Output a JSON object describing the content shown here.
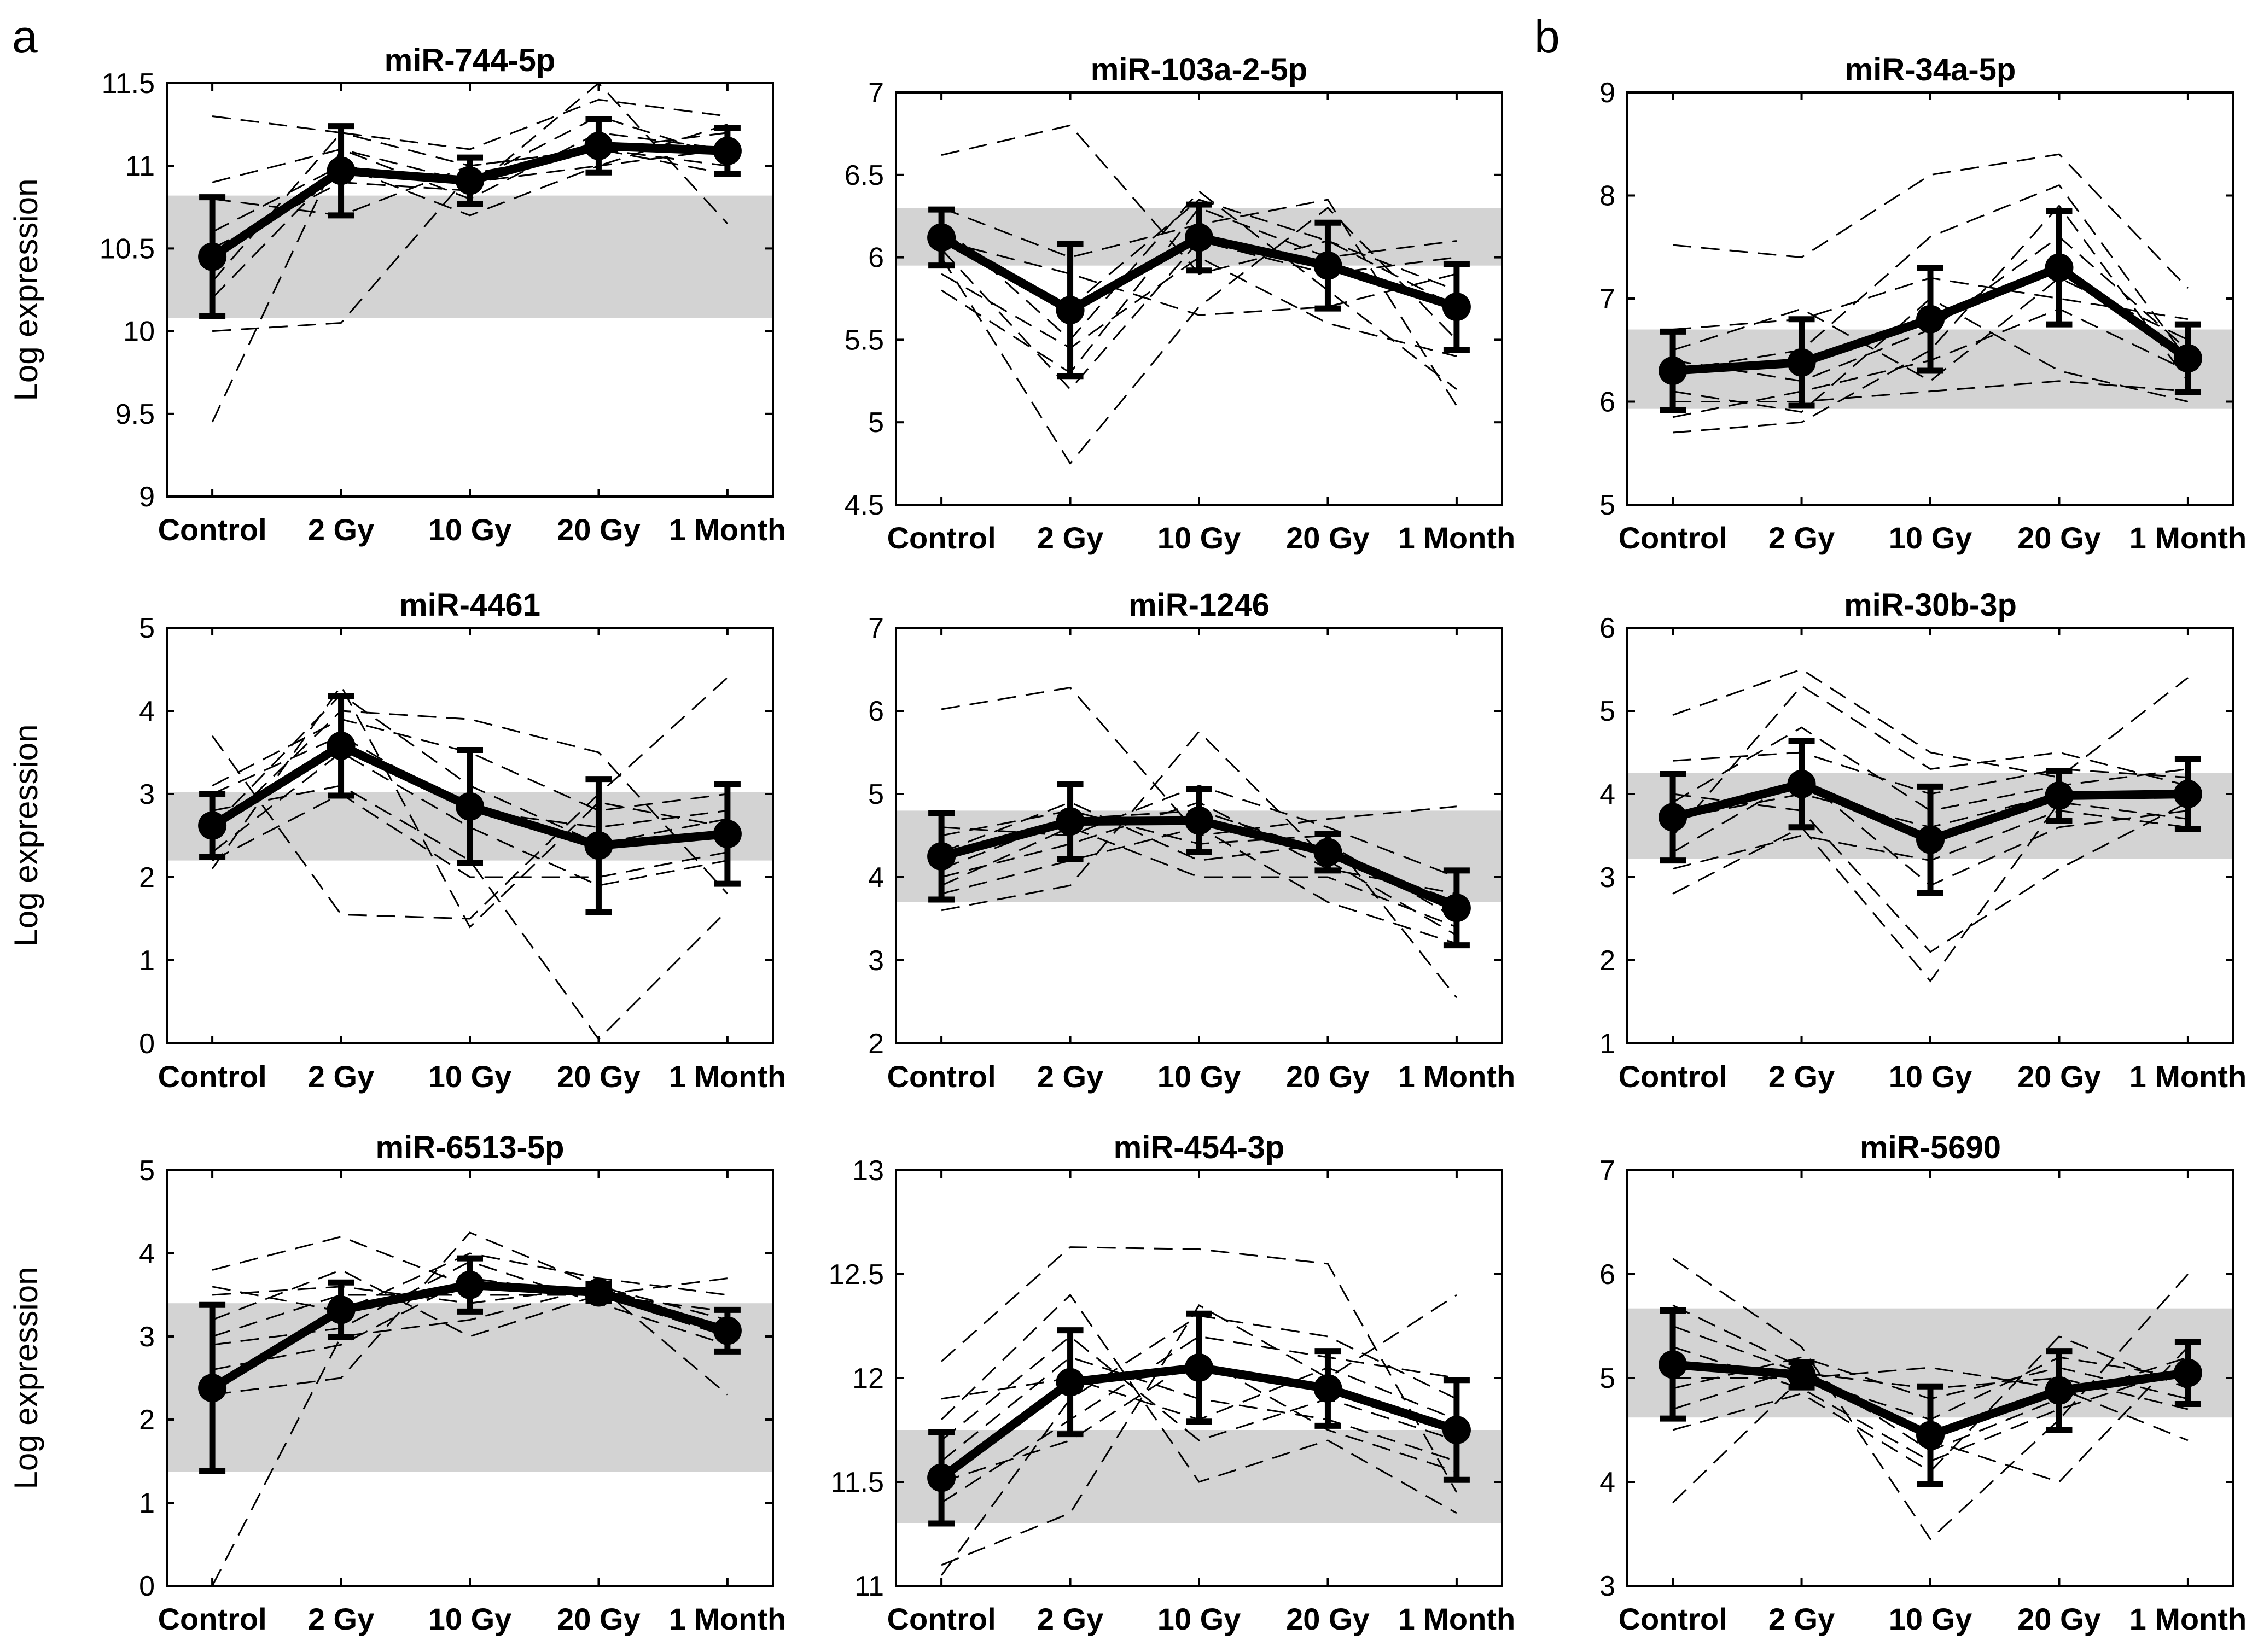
{
  "panel_letters": [
    "a",
    "b"
  ],
  "chart_data": [
    {
      "type": "line",
      "title": "miR-744-5p",
      "ylabel": "Log expression",
      "xlabel": "",
      "categories": [
        "Control",
        "2 Gy",
        "10 Gy",
        "20 Gy",
        "1 Month"
      ],
      "ylim": [
        9,
        11.5
      ],
      "yticks": [
        9,
        9.5,
        10,
        10.5,
        11,
        11.5
      ],
      "control_band": [
        10.08,
        10.82
      ],
      "mean": {
        "values": [
          10.45,
          10.97,
          10.91,
          11.12,
          11.09
        ],
        "err": [
          0.36,
          0.27,
          0.14,
          0.16,
          0.14
        ]
      },
      "series": [
        [
          11.3,
          11.2,
          11.0,
          11.1,
          10.95
        ],
        [
          10.9,
          11.1,
          10.8,
          11.2,
          11.1
        ],
        [
          10.6,
          11.0,
          10.9,
          11.3,
          11.05
        ],
        [
          9.45,
          11.1,
          10.9,
          11.0,
          11.25
        ],
        [
          10.2,
          11.0,
          10.7,
          11.0,
          11.1
        ],
        [
          10.0,
          10.05,
          10.95,
          11.1,
          11.2
        ],
        [
          10.5,
          10.9,
          10.85,
          11.5,
          10.65
        ],
        [
          10.8,
          10.7,
          11.0,
          11.1,
          11.0
        ],
        [
          10.3,
          11.2,
          11.1,
          11.4,
          11.3
        ]
      ]
    },
    {
      "type": "line",
      "title": "miR-103a-2-5p",
      "ylabel": "",
      "xlabel": "",
      "categories": [
        "Control",
        "2 Gy",
        "10 Gy",
        "20 Gy",
        "1 Month"
      ],
      "ylim": [
        4.5,
        7
      ],
      "yticks": [
        4.5,
        5,
        5.5,
        6,
        6.5,
        7
      ],
      "control_band": [
        5.95,
        6.3
      ],
      "mean": {
        "values": [
          6.12,
          5.68,
          6.12,
          5.95,
          5.7
        ],
        "err": [
          0.17,
          0.4,
          0.2,
          0.26,
          0.26
        ]
      },
      "series": [
        [
          6.62,
          6.8,
          5.9,
          6.1,
          5.8
        ],
        [
          6.0,
          4.75,
          5.7,
          6.3,
          5.5
        ],
        [
          6.2,
          5.5,
          6.4,
          5.8,
          5.2
        ],
        [
          5.8,
          5.3,
          6.3,
          6.0,
          6.1
        ],
        [
          6.1,
          5.9,
          5.65,
          5.7,
          5.9
        ],
        [
          6.3,
          6.0,
          6.2,
          6.35,
          5.1
        ],
        [
          5.9,
          5.45,
          6.0,
          5.6,
          5.4
        ],
        [
          6.15,
          5.7,
          6.35,
          6.1,
          5.7
        ],
        [
          6.05,
          5.2,
          6.1,
          5.9,
          6.0
        ]
      ]
    },
    {
      "type": "line",
      "title": "miR-34a-5p",
      "ylabel": "",
      "xlabel": "",
      "categories": [
        "Control",
        "2 Gy",
        "10 Gy",
        "20 Gy",
        "1 Month"
      ],
      "ylim": [
        5,
        9
      ],
      "yticks": [
        5,
        6,
        7,
        8,
        9
      ],
      "control_band": [
        5.93,
        6.7
      ],
      "mean": {
        "values": [
          6.3,
          6.38,
          6.8,
          7.3,
          6.42
        ],
        "err": [
          0.38,
          0.42,
          0.5,
          0.55,
          0.33
        ]
      },
      "series": [
        [
          7.52,
          7.4,
          8.2,
          8.4,
          7.1
        ],
        [
          6.3,
          6.5,
          7.6,
          8.1,
          6.4
        ],
        [
          5.7,
          5.8,
          6.5,
          7.9,
          6.2
        ],
        [
          6.0,
          6.0,
          6.1,
          6.2,
          6.1
        ],
        [
          6.5,
          6.9,
          6.2,
          7.2,
          6.6
        ],
        [
          6.1,
          5.9,
          7.0,
          6.3,
          6.0
        ],
        [
          6.4,
          6.2,
          6.7,
          7.6,
          6.5
        ],
        [
          5.85,
          6.1,
          6.4,
          6.9,
          6.3
        ],
        [
          6.7,
          6.8,
          7.2,
          7.0,
          6.8
        ]
      ]
    },
    {
      "type": "line",
      "title": "miR-4461",
      "ylabel": "Log expression",
      "xlabel": "",
      "categories": [
        "Control",
        "2 Gy",
        "10 Gy",
        "20 Gy",
        "1 Month"
      ],
      "ylim": [
        0,
        5
      ],
      "yticks": [
        0,
        1,
        2,
        3,
        4,
        5
      ],
      "control_band": [
        2.2,
        3.02
      ],
      "mean": {
        "values": [
          2.62,
          3.58,
          2.85,
          2.38,
          2.52
        ],
        "err": [
          0.38,
          0.6,
          0.68,
          0.8,
          0.6
        ]
      },
      "series": [
        [
          3.7,
          1.55,
          1.5,
          3.0,
          4.4
        ],
        [
          2.1,
          4.3,
          1.4,
          2.9,
          2.6
        ],
        [
          2.5,
          4.0,
          3.9,
          3.5,
          1.8
        ],
        [
          2.8,
          3.1,
          2.2,
          0.05,
          1.6
        ],
        [
          3.1,
          3.9,
          3.5,
          2.8,
          3.0
        ],
        [
          2.3,
          3.5,
          2.6,
          1.9,
          2.2
        ],
        [
          2.6,
          4.2,
          3.1,
          2.4,
          2.7
        ],
        [
          2.2,
          3.0,
          2.0,
          2.0,
          2.3
        ],
        [
          3.0,
          3.7,
          2.8,
          2.6,
          2.8
        ]
      ]
    },
    {
      "type": "line",
      "title": "miR-1246",
      "ylabel": "",
      "xlabel": "",
      "categories": [
        "Control",
        "2 Gy",
        "10 Gy",
        "20 Gy",
        "1 Month"
      ],
      "ylim": [
        2,
        7
      ],
      "yticks": [
        2,
        3,
        4,
        5,
        6,
        7
      ],
      "control_band": [
        3.7,
        4.8
      ],
      "mean": {
        "values": [
          4.25,
          4.67,
          4.68,
          4.3,
          3.63
        ],
        "err": [
          0.52,
          0.45,
          0.38,
          0.22,
          0.45
        ]
      },
      "series": [
        [
          6.02,
          6.28,
          4.5,
          4.7,
          4.85
        ],
        [
          3.6,
          3.9,
          5.75,
          4.2,
          3.3
        ],
        [
          4.5,
          4.8,
          4.4,
          4.5,
          2.55
        ],
        [
          4.0,
          4.4,
          4.9,
          4.1,
          3.8
        ],
        [
          3.8,
          4.2,
          4.6,
          3.7,
          3.2
        ],
        [
          4.3,
          4.9,
          4.2,
          4.4,
          3.5
        ],
        [
          4.6,
          4.5,
          5.1,
          4.6,
          4.0
        ],
        [
          3.9,
          4.6,
          4.0,
          4.0,
          3.4
        ],
        [
          4.1,
          4.7,
          4.8,
          4.3,
          3.7
        ]
      ]
    },
    {
      "type": "line",
      "title": "miR-30b-3p",
      "ylabel": "",
      "xlabel": "",
      "categories": [
        "Control",
        "2 Gy",
        "10 Gy",
        "20 Gy",
        "1 Month"
      ],
      "ylim": [
        1,
        6
      ],
      "yticks": [
        1,
        2,
        3,
        4,
        5,
        6
      ],
      "control_band": [
        3.22,
        4.25
      ],
      "mean": {
        "values": [
          3.72,
          4.12,
          3.45,
          3.98,
          4.0
        ],
        "err": [
          0.52,
          0.52,
          0.64,
          0.3,
          0.42
        ]
      },
      "series": [
        [
          4.95,
          5.5,
          4.5,
          4.2,
          5.4
        ],
        [
          2.8,
          3.6,
          1.75,
          3.9,
          3.7
        ],
        [
          3.5,
          5.3,
          4.3,
          4.5,
          4.1
        ],
        [
          4.0,
          3.8,
          2.1,
          3.1,
          3.9
        ],
        [
          3.1,
          3.5,
          3.2,
          3.8,
          3.6
        ],
        [
          4.4,
          4.5,
          4.0,
          4.3,
          4.2
        ],
        [
          3.7,
          4.0,
          3.6,
          4.0,
          4.0
        ],
        [
          3.3,
          4.2,
          2.9,
          3.6,
          3.8
        ],
        [
          3.9,
          4.8,
          3.8,
          4.1,
          4.3
        ]
      ]
    },
    {
      "type": "line",
      "title": "miR-6513-5p",
      "ylabel": "Log expression",
      "xlabel": "",
      "categories": [
        "Control",
        "2 Gy",
        "10 Gy",
        "20 Gy",
        "1 Month"
      ],
      "ylim": [
        0,
        5
      ],
      "yticks": [
        0,
        1,
        2,
        3,
        4,
        5
      ],
      "control_band": [
        1.37,
        3.4
      ],
      "mean": {
        "values": [
          2.38,
          3.32,
          3.62,
          3.53,
          3.07
        ],
        "err": [
          1.0,
          0.33,
          0.32,
          0.1,
          0.25
        ]
      },
      "series": [
        [
          0.0,
          3.0,
          3.2,
          3.6,
          2.3
        ],
        [
          3.8,
          4.2,
          3.6,
          3.5,
          3.7
        ],
        [
          2.3,
          2.5,
          4.25,
          3.6,
          3.1
        ],
        [
          3.2,
          3.8,
          3.0,
          3.5,
          3.3
        ],
        [
          2.9,
          3.1,
          3.9,
          3.4,
          2.9
        ],
        [
          3.5,
          3.6,
          3.4,
          3.6,
          3.2
        ],
        [
          2.6,
          2.9,
          3.7,
          3.5,
          3.0
        ],
        [
          3.6,
          3.3,
          4.0,
          3.7,
          3.5
        ],
        [
          3.0,
          3.5,
          3.5,
          3.5,
          3.1
        ]
      ]
    },
    {
      "type": "line",
      "title": "miR-454-3p",
      "ylabel": "",
      "xlabel": "",
      "categories": [
        "Control",
        "2 Gy",
        "10 Gy",
        "20 Gy",
        "1 Month"
      ],
      "ylim": [
        11,
        13
      ],
      "yticks": [
        11,
        11.5,
        12,
        12.5,
        13
      ],
      "control_band": [
        11.3,
        11.75
      ],
      "mean": {
        "values": [
          11.52,
          11.98,
          12.05,
          11.95,
          11.75
        ],
        "err": [
          0.22,
          0.25,
          0.26,
          0.18,
          0.24
        ]
      },
      "series": [
        [
          12.08,
          12.63,
          12.62,
          12.55,
          11.45
        ],
        [
          11.1,
          11.35,
          12.35,
          12.0,
          12.4
        ],
        [
          11.8,
          12.4,
          11.5,
          11.7,
          11.35
        ],
        [
          11.4,
          11.8,
          12.2,
          12.1,
          12.0
        ],
        [
          11.6,
          12.1,
          11.9,
          11.8,
          11.6
        ],
        [
          11.05,
          11.9,
          12.3,
          12.2,
          11.9
        ],
        [
          11.7,
          12.2,
          11.7,
          11.9,
          11.7
        ],
        [
          11.5,
          11.7,
          12.1,
          11.75,
          11.55
        ],
        [
          11.9,
          12.0,
          11.8,
          12.05,
          11.8
        ]
      ]
    },
    {
      "type": "line",
      "title": "miR-5690",
      "ylabel": "",
      "xlabel": "",
      "categories": [
        "Control",
        "2 Gy",
        "10 Gy",
        "20 Gy",
        "1 Month"
      ],
      "ylim": [
        3,
        7
      ],
      "yticks": [
        3,
        4,
        5,
        6,
        7
      ],
      "control_band": [
        4.62,
        5.67
      ],
      "mean": {
        "values": [
          5.13,
          5.03,
          4.45,
          4.88,
          5.05
        ],
        "err": [
          0.52,
          0.12,
          0.47,
          0.38,
          0.3
        ]
      },
      "series": [
        [
          6.15,
          5.3,
          3.45,
          4.6,
          6.0
        ],
        [
          3.8,
          5.0,
          5.1,
          4.9,
          4.4
        ],
        [
          4.5,
          4.85,
          4.1,
          5.4,
          4.9
        ],
        [
          5.7,
          5.1,
          4.4,
          4.0,
          5.3
        ],
        [
          4.9,
          5.2,
          4.8,
          5.1,
          4.8
        ],
        [
          5.3,
          4.9,
          4.2,
          4.7,
          5.1
        ],
        [
          5.0,
          5.0,
          4.6,
          5.2,
          5.0
        ],
        [
          4.7,
          5.1,
          4.3,
          4.8,
          5.2
        ],
        [
          5.5,
          5.05,
          4.9,
          5.0,
          4.7
        ]
      ]
    }
  ]
}
